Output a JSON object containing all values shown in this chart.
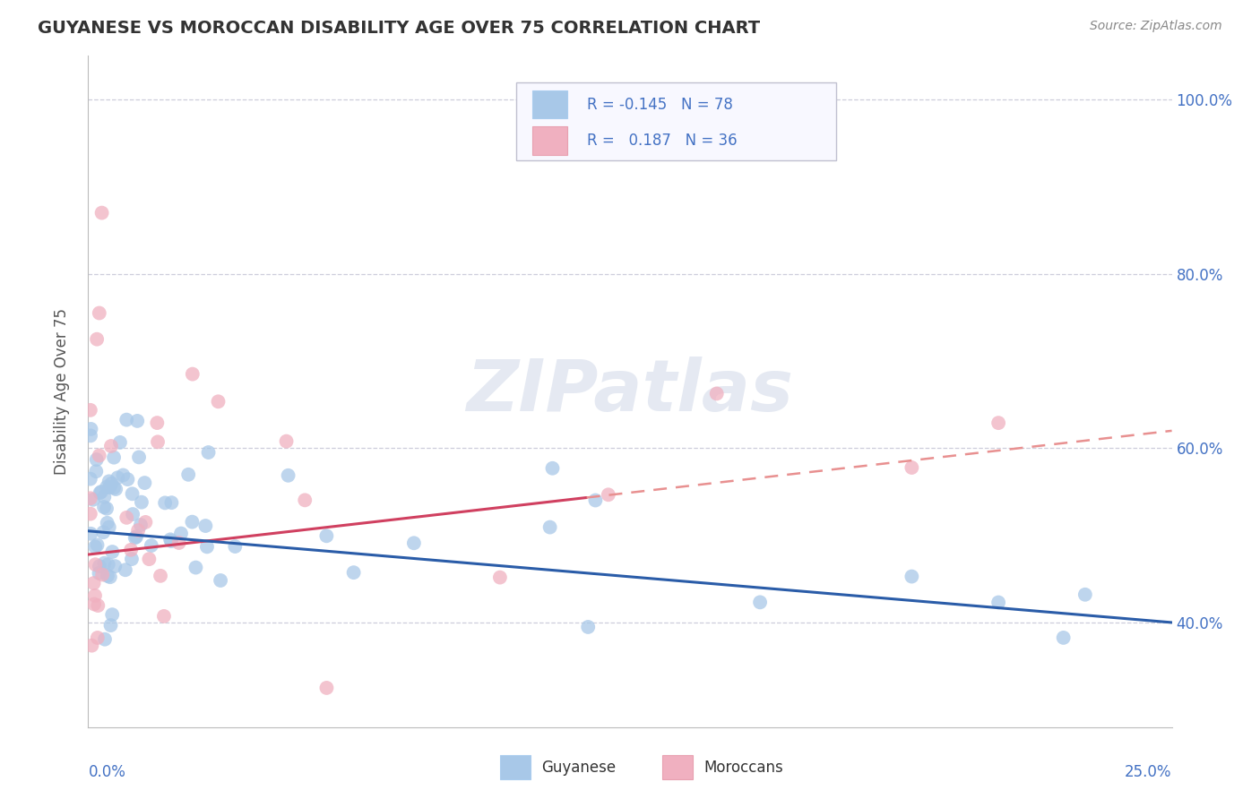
{
  "title": "GUYANESE VS MOROCCAN DISABILITY AGE OVER 75 CORRELATION CHART",
  "source": "Source: ZipAtlas.com",
  "ylabel": "Disability Age Over 75",
  "xlim": [
    0.0,
    0.25
  ],
  "ylim": [
    0.28,
    1.05
  ],
  "yticks": [
    0.4,
    0.6,
    0.8,
    1.0
  ],
  "ytick_labels": [
    "40.0%",
    "60.0%",
    "80.0%",
    "100.0%"
  ],
  "guyanese_R": -0.145,
  "guyanese_N": 78,
  "moroccan_R": 0.187,
  "moroccan_N": 36,
  "guyanese_fill": "#a8c8e8",
  "moroccan_fill": "#f0b0c0",
  "trend_guyanese_color": "#2a5ca8",
  "trend_moroccan_color": "#d04060",
  "trend_moroccan_dash_color": "#e89090",
  "background_color": "#ffffff",
  "grid_color": "#c8c8d8",
  "watermark": "ZIPatlas",
  "legend_R_color": "#4472c4",
  "legend_bg": "#f8f8ff",
  "legend_border": "#c0c0d0"
}
